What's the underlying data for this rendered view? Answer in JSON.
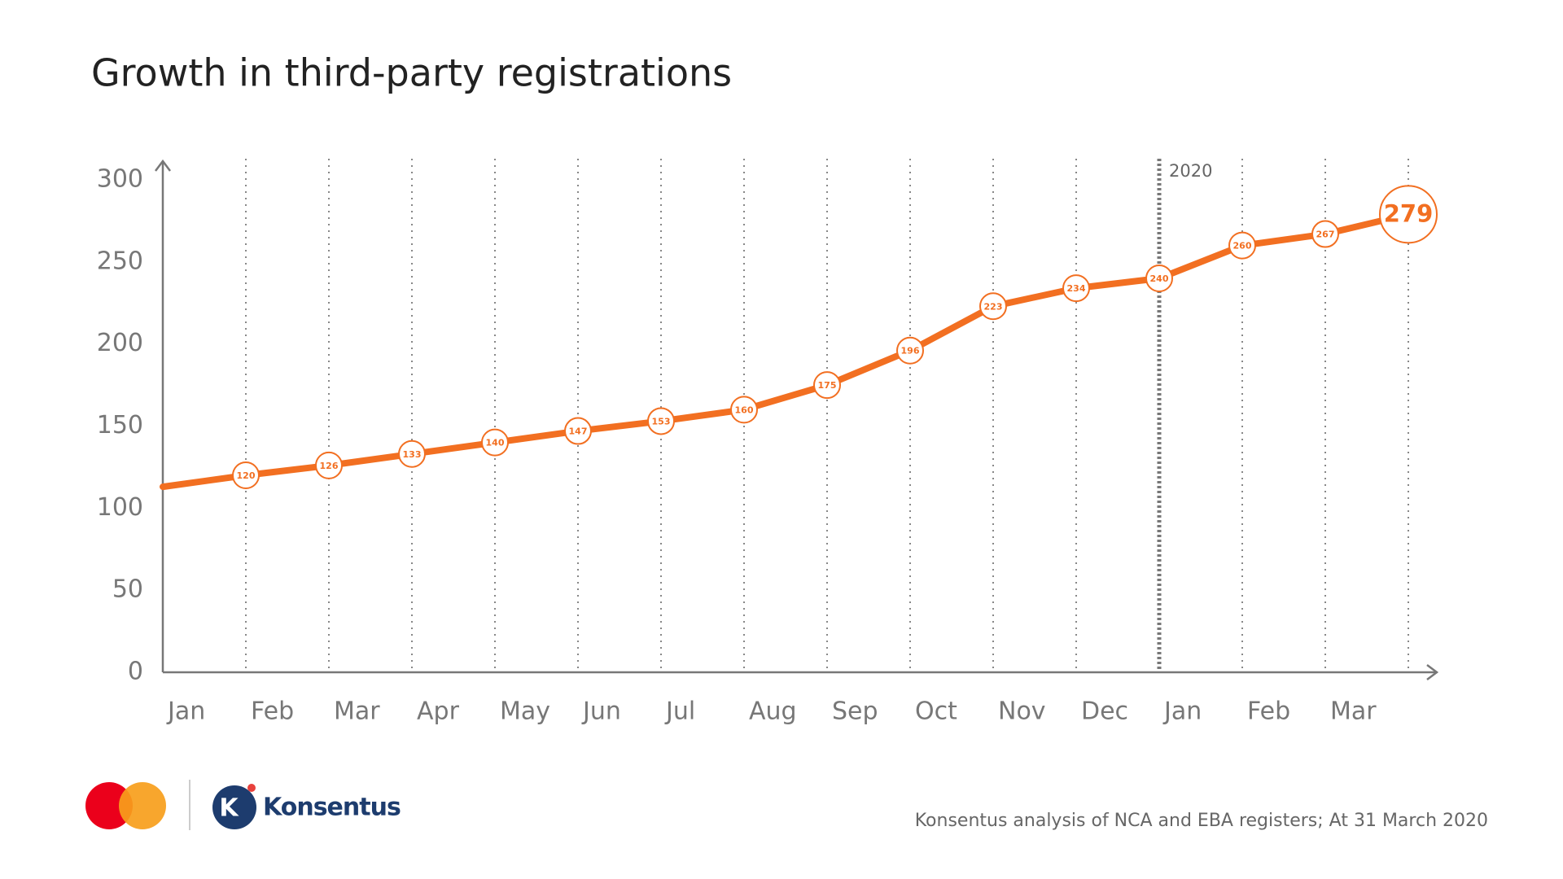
{
  "chart_data": {
    "type": "line",
    "title": "Growth in third-party registrations",
    "categories": [
      "Jan",
      "Feb",
      "Mar",
      "Apr",
      "May",
      "Jun",
      "Jul",
      "Aug",
      "Sep",
      "Oct",
      "Nov",
      "Dec",
      "Jan",
      "Feb",
      "Mar"
    ],
    "start_value": 113,
    "values": [
      120,
      126,
      133,
      140,
      147,
      153,
      160,
      175,
      196,
      223,
      234,
      240,
      260,
      267,
      279
    ],
    "color": "#f26f21",
    "ylim": [
      0,
      300
    ],
    "yticks": [
      0,
      50,
      100,
      150,
      200,
      250,
      300
    ],
    "grid": true,
    "year_marker": {
      "label": "2020",
      "after_category": 11
    },
    "source": "Konsentus analysis of NCA and EBA registers; At 31 March 2020",
    "logo_text": "Konsentus"
  }
}
